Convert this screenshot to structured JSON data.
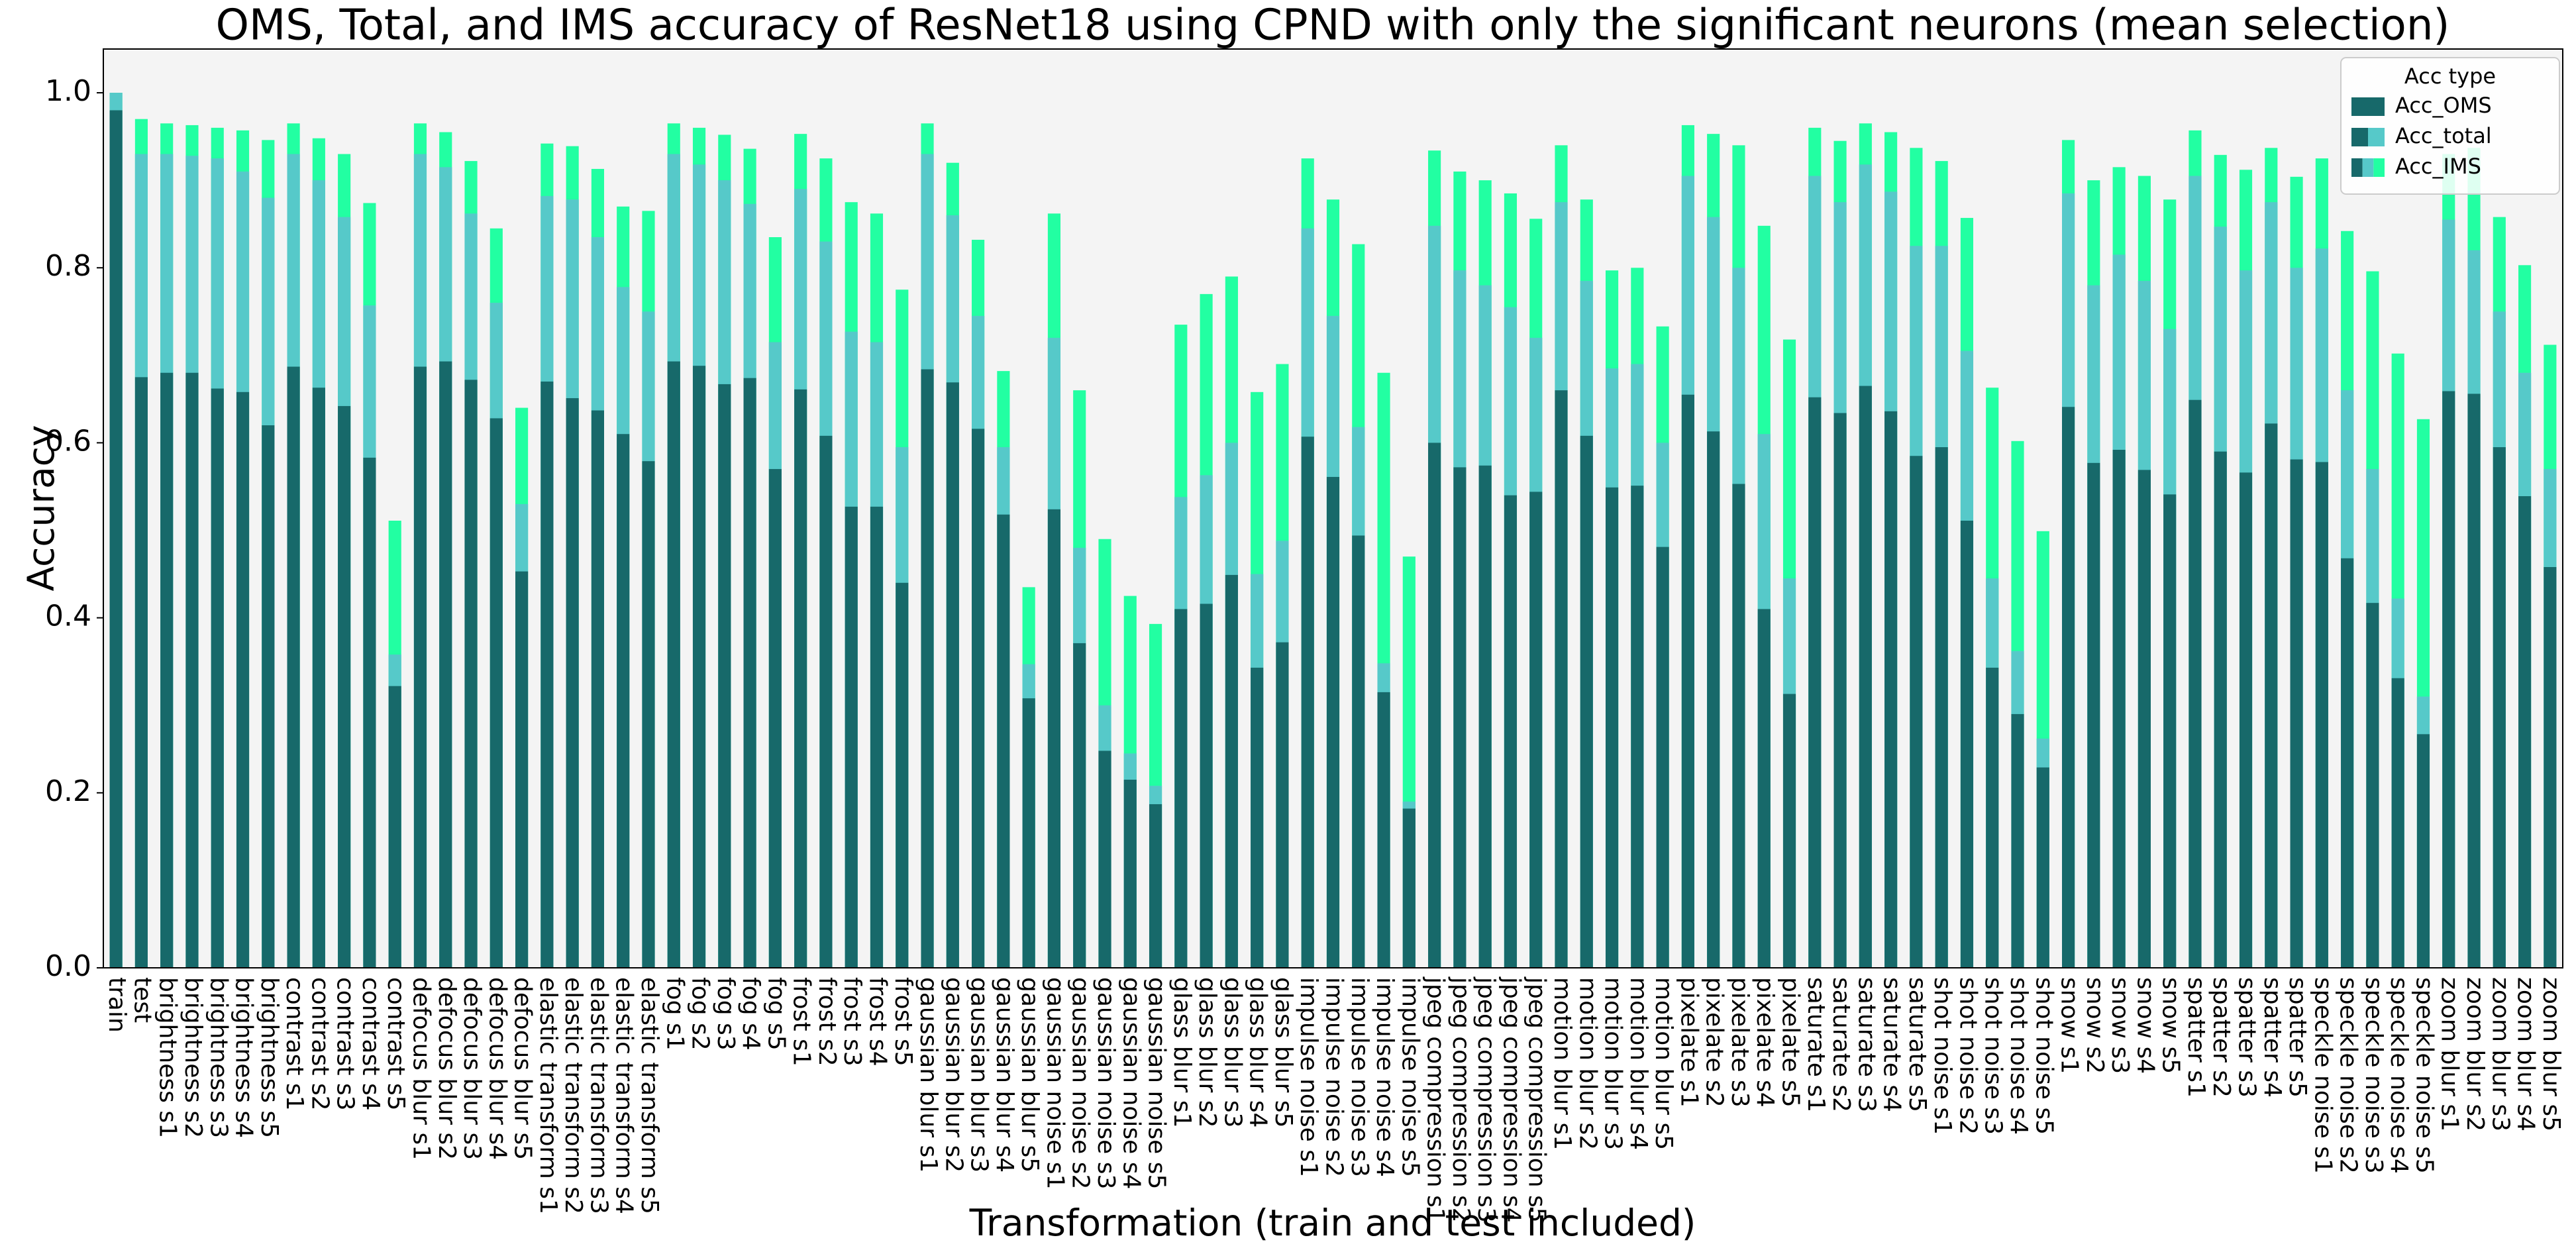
{
  "chart_data": {
    "type": "bar",
    "title": "OMS, Total,  and IMS accuracy of ResNet18 using CPND with only the significant neurons (mean selection)",
    "x_label": "Transformation (train and test included)",
    "y_label": "Accuracy",
    "legend_title": "Acc type",
    "legend_position": "upper right",
    "overlap": true,
    "categories": [
      "train",
      "test",
      "brightness s1",
      "brightness s2",
      "brightness s3",
      "brightness s4",
      "brightness s5",
      "contrast s1",
      "contrast s2",
      "contrast s3",
      "contrast s4",
      "contrast s5",
      "defocus blur s1",
      "defocus blur s2",
      "defocus blur s3",
      "defocus blur s4",
      "defocus blur s5",
      "elastic transform s1",
      "elastic transform s2",
      "elastic transform s3",
      "elastic transform s4",
      "elastic transform s5",
      "fog s1",
      "fog s2",
      "fog s3",
      "fog s4",
      "fog s5",
      "frost s1",
      "frost s2",
      "frost s3",
      "frost s4",
      "frost s5",
      "gaussian blur s1",
      "gaussian blur s2",
      "gaussian blur s3",
      "gaussian blur s4",
      "gaussian blur s5",
      "gaussian noise s1",
      "gaussian noise s2",
      "gaussian noise s3",
      "gaussian noise s4",
      "gaussian noise s5",
      "glass blur s1",
      "glass blur s2",
      "glass blur s3",
      "glass blur s4",
      "glass blur s5",
      "impulse noise s1",
      "impulse noise s2",
      "impulse noise s3",
      "impulse noise s4",
      "impulse noise s5",
      "jpeg compression s1",
      "jpeg compression s2",
      "jpeg compression s3",
      "jpeg compression s4",
      "jpeg compression s5",
      "motion blur s1",
      "motion blur s2",
      "motion blur s3",
      "motion blur s4",
      "motion blur s5",
      "pixelate s1",
      "pixelate s2",
      "pixelate s3",
      "pixelate s4",
      "pixelate s5",
      "saturate s1",
      "saturate s2",
      "saturate s3",
      "saturate s4",
      "saturate s5",
      "shot noise s1",
      "shot noise s2",
      "shot noise s3",
      "shot noise s4",
      "shot noise s5",
      "snow s1",
      "snow s2",
      "snow s3",
      "snow s4",
      "snow s5",
      "spatter s1",
      "spatter s2",
      "spatter s3",
      "spatter s4",
      "spatter s5",
      "speckle noise s1",
      "speckle noise s2",
      "speckle noise s3",
      "speckle noise s4",
      "speckle noise s5",
      "zoom blur s1",
      "zoom blur s2",
      "zoom blur s3",
      "zoom blur s4",
      "zoom blur s5"
    ],
    "series": [
      {
        "name": "Acc_OMS",
        "color": "#17696a",
        "values": [
          0.98,
          0.675,
          0.68,
          0.68,
          0.662,
          0.658,
          0.62,
          0.687,
          0.663,
          0.642,
          0.583,
          0.322,
          0.687,
          0.693,
          0.672,
          0.628,
          0.453,
          0.67,
          0.651,
          0.637,
          0.61,
          0.579,
          0.693,
          0.688,
          0.667,
          0.674,
          0.57,
          0.661,
          0.608,
          0.527,
          0.527,
          0.44,
          0.684,
          0.669,
          0.616,
          0.518,
          0.308,
          0.524,
          0.371,
          0.248,
          0.215,
          0.187,
          0.41,
          0.416,
          0.449,
          0.343,
          0.372,
          0.607,
          0.561,
          0.494,
          0.315,
          0.182,
          0.6,
          0.572,
          0.574,
          0.54,
          0.544,
          0.66,
          0.608,
          0.549,
          0.551,
          0.481,
          0.655,
          0.613,
          0.553,
          0.41,
          0.313,
          0.652,
          0.634,
          0.665,
          0.636,
          0.585,
          0.595,
          0.511,
          0.343,
          0.29,
          0.229,
          0.641,
          0.577,
          0.592,
          0.569,
          0.541,
          0.649,
          0.59,
          0.566,
          0.622,
          0.581,
          0.578,
          0.468,
          0.417,
          0.331,
          0.267,
          0.659,
          0.656,
          0.595,
          0.539,
          0.458
        ]
      },
      {
        "name": "Acc_total",
        "color": "#56c9c9",
        "values": [
          1.0,
          0.93,
          0.93,
          0.928,
          0.925,
          0.91,
          0.88,
          0.93,
          0.9,
          0.858,
          0.757,
          0.358,
          0.93,
          0.915,
          0.862,
          0.76,
          0.53,
          0.882,
          0.878,
          0.835,
          0.778,
          0.75,
          0.93,
          0.918,
          0.9,
          0.873,
          0.715,
          0.89,
          0.83,
          0.727,
          0.715,
          0.595,
          0.93,
          0.86,
          0.745,
          0.595,
          0.347,
          0.72,
          0.48,
          0.3,
          0.245,
          0.208,
          0.538,
          0.563,
          0.6,
          0.45,
          0.488,
          0.845,
          0.745,
          0.618,
          0.348,
          0.19,
          0.848,
          0.797,
          0.78,
          0.755,
          0.72,
          0.875,
          0.785,
          0.685,
          0.69,
          0.6,
          0.905,
          0.858,
          0.8,
          0.61,
          0.445,
          0.905,
          0.875,
          0.918,
          0.887,
          0.825,
          0.825,
          0.705,
          0.445,
          0.362,
          0.262,
          0.885,
          0.78,
          0.815,
          0.785,
          0.73,
          0.905,
          0.847,
          0.797,
          0.875,
          0.8,
          0.822,
          0.66,
          0.57,
          0.422,
          0.31,
          0.855,
          0.82,
          0.75,
          0.68,
          0.57
        ]
      },
      {
        "name": "Acc_IMS",
        "color": "#22ffa2",
        "values": [
          1.0,
          0.97,
          0.965,
          0.963,
          0.96,
          0.957,
          0.946,
          0.965,
          0.948,
          0.93,
          0.874,
          0.511,
          0.965,
          0.955,
          0.922,
          0.845,
          0.64,
          0.942,
          0.939,
          0.913,
          0.87,
          0.865,
          0.965,
          0.96,
          0.952,
          0.936,
          0.835,
          0.953,
          0.925,
          0.875,
          0.862,
          0.775,
          0.965,
          0.92,
          0.832,
          0.682,
          0.435,
          0.862,
          0.66,
          0.49,
          0.425,
          0.393,
          0.735,
          0.77,
          0.79,
          0.658,
          0.69,
          0.925,
          0.878,
          0.827,
          0.68,
          0.47,
          0.934,
          0.91,
          0.9,
          0.885,
          0.856,
          0.94,
          0.878,
          0.797,
          0.8,
          0.733,
          0.963,
          0.953,
          0.94,
          0.848,
          0.718,
          0.96,
          0.945,
          0.965,
          0.955,
          0.937,
          0.922,
          0.857,
          0.663,
          0.602,
          0.499,
          0.946,
          0.9,
          0.915,
          0.905,
          0.878,
          0.957,
          0.929,
          0.912,
          0.937,
          0.904,
          0.925,
          0.842,
          0.796,
          0.702,
          0.627,
          0.93,
          0.937,
          0.858,
          0.803,
          0.712
        ]
      }
    ],
    "ylim": [
      0,
      1.05
    ],
    "yticks": [
      {
        "value": 0,
        "label": "0.0"
      },
      0.2,
      0.4,
      0.6,
      0.8,
      {
        "value": 1,
        "label": "1.0"
      }
    ],
    "grid": false
  }
}
